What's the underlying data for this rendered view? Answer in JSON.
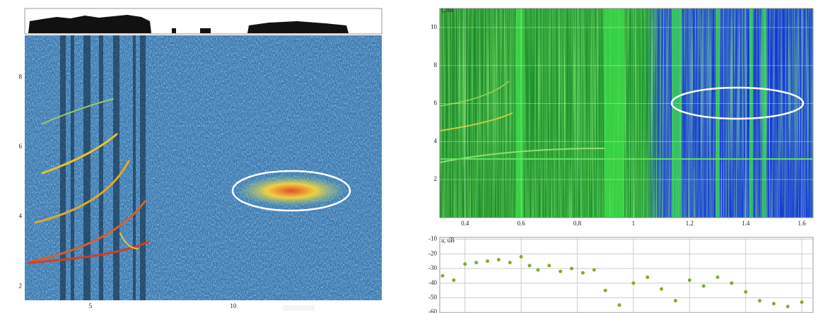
{
  "chart_data": [
    {
      "type": "heatmap",
      "xlim": [
        2.7,
        15.2
      ],
      "ylim": [
        1.6,
        9.2
      ],
      "xticks": [
        5,
        10
      ],
      "yticks": [
        2,
        4,
        6,
        8
      ]
    },
    {
      "type": "heatmap",
      "y_label": "t, ms",
      "xlim": [
        0.31,
        1.64
      ],
      "ylim": [
        0,
        11
      ],
      "xticks": [
        0.4,
        0.6,
        0.8,
        1.0,
        1.2,
        1.4,
        1.6
      ],
      "yticks": [
        2,
        4,
        6,
        8,
        10
      ],
      "grid": true
    },
    {
      "type": "scatter",
      "y_label": "a, dB",
      "xlim": [
        0.31,
        1.64
      ],
      "ylim": [
        -60.4,
        -8.8
      ],
      "yticks": [
        -10,
        -20,
        -30,
        -40,
        -50,
        -60
      ],
      "grid": true,
      "series": [
        {
          "color": "#7fae2a",
          "x": [
            0.32,
            0.36,
            0.4,
            0.44,
            0.48,
            0.52,
            0.56,
            0.6,
            0.63,
            0.66,
            0.7,
            0.74,
            0.78,
            0.82,
            0.86,
            0.9,
            0.95,
            1.0,
            1.05,
            1.1,
            1.15,
            1.2,
            1.25,
            1.3,
            1.35,
            1.4,
            1.45,
            1.5,
            1.55,
            1.6
          ],
          "values": [
            -35,
            -38,
            -27,
            -26,
            -25,
            -24,
            -26,
            -22,
            -28,
            -31,
            -28,
            -32,
            -30,
            -33,
            -31,
            -45,
            -55,
            -40,
            -36,
            -44,
            -52,
            -38,
            -42,
            -36,
            -40,
            -46,
            -52,
            -54,
            -56,
            -53
          ]
        }
      ]
    }
  ]
}
